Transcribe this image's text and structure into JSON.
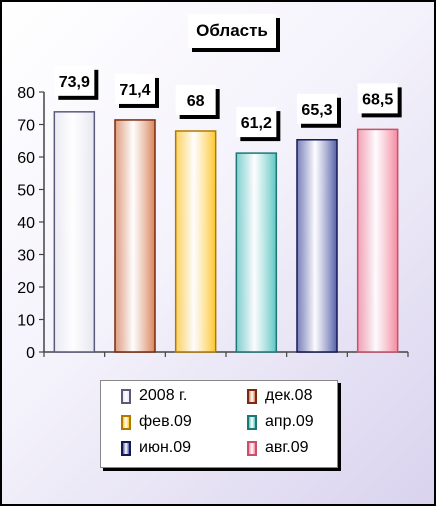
{
  "chart_data": {
    "type": "bar",
    "title": "Область",
    "categories": [
      "2008 г.",
      "дек.08",
      "фев.09",
      "апр.09",
      "июн.09",
      "авг.09"
    ],
    "values": [
      73.9,
      71.4,
      68,
      61.2,
      65.3,
      68.5
    ],
    "data_labels": [
      "73,9",
      "71,4",
      "68",
      "61,2",
      "65,3",
      "68,5"
    ],
    "colors": [
      "#e8e6f0",
      "#d9845a",
      "#ffc830",
      "#5ec7c2",
      "#5560a8",
      "#f58aa0"
    ],
    "border_colors": [
      "#5a5a7a",
      "#7a2a10",
      "#b07a00",
      "#1f7775",
      "#151a55",
      "#c9506a"
    ],
    "ylim": [
      0,
      80
    ],
    "yticks": [
      "0",
      "10",
      "20",
      "30",
      "40",
      "50",
      "60",
      "70",
      "80"
    ],
    "grid": false,
    "legend": "bottom"
  }
}
